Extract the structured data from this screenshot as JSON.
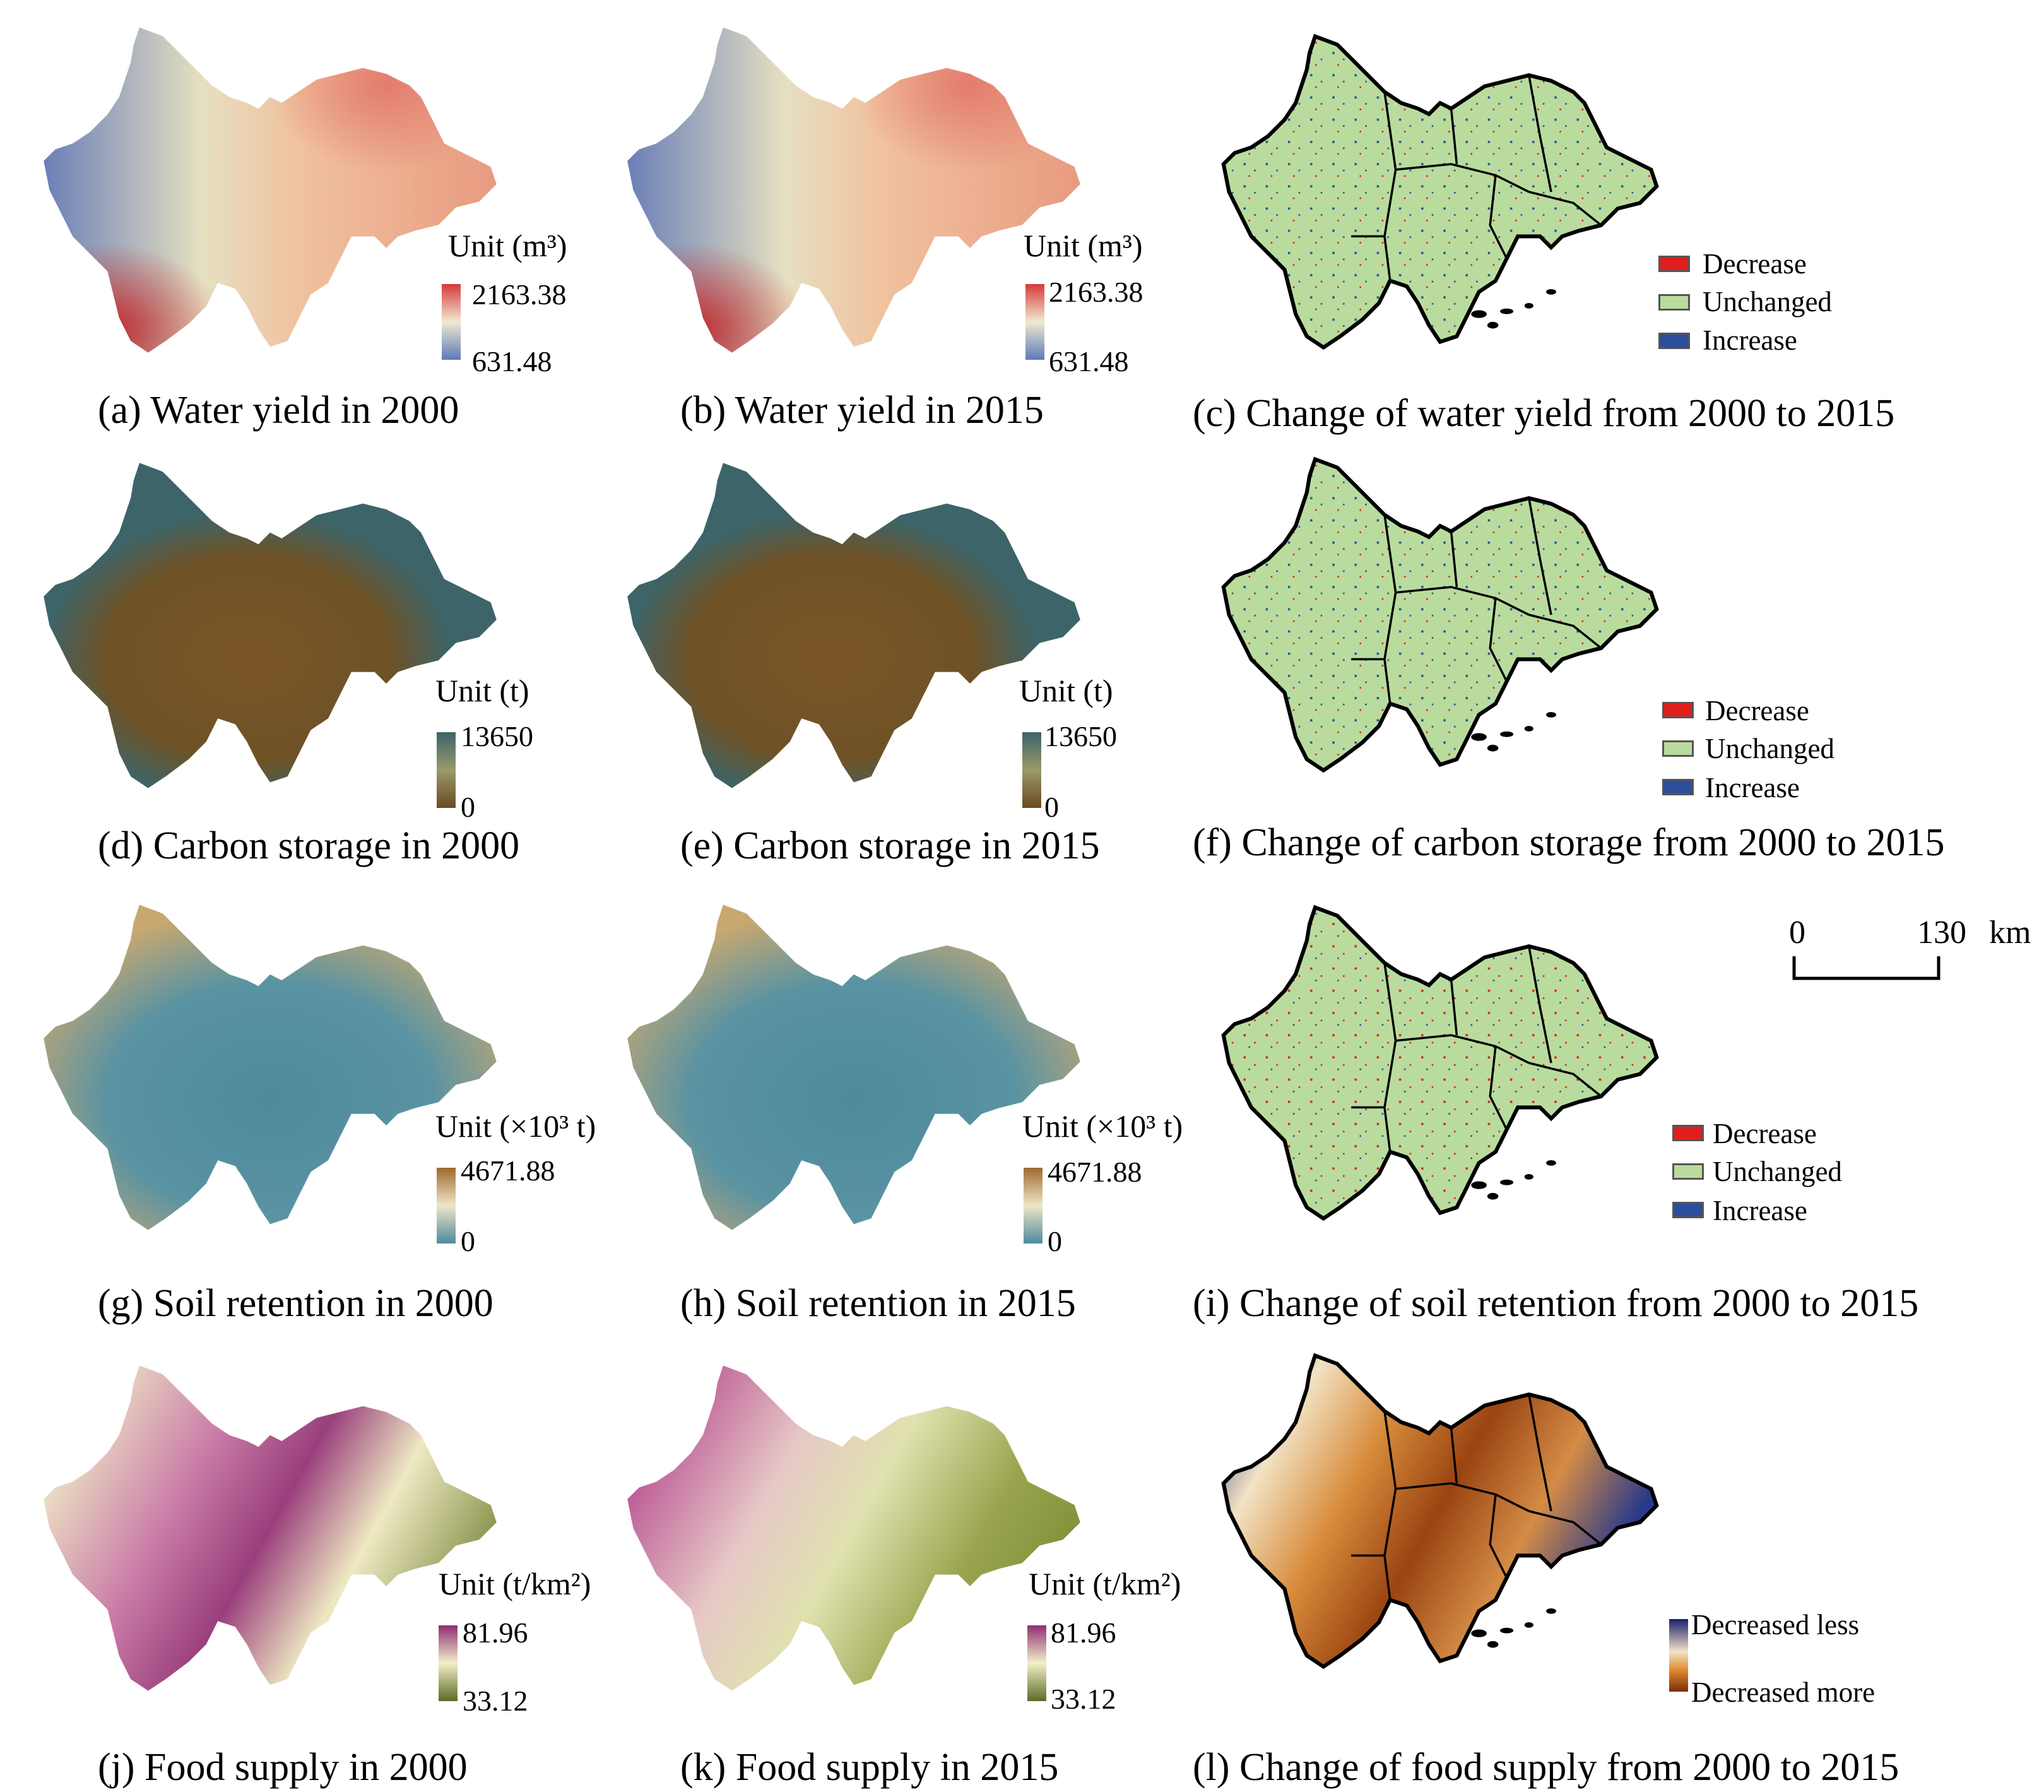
{
  "panels": {
    "a": {
      "caption": "(a) Water yield in 2000",
      "unit": "Unit (m³)",
      "max": "2163.38",
      "min": "631.48"
    },
    "b": {
      "caption": "(b) Water yield in 2015",
      "unit": "Unit (m³)",
      "max": "2163.38",
      "min": "631.48"
    },
    "c": {
      "caption": "(c) Change of water yield from 2000 to 2015",
      "legend": [
        "Decrease",
        "Unchanged",
        "Increase"
      ]
    },
    "d": {
      "caption": "(d) Carbon storage in 2000",
      "unit": "Unit (t)",
      "max": "13650",
      "min": "0"
    },
    "e": {
      "caption": "(e) Carbon storage in 2015",
      "unit": "Unit (t)",
      "max": "13650",
      "min": "0"
    },
    "f": {
      "caption": "(f) Change of carbon storage from 2000 to 2015",
      "legend": [
        "Decrease",
        "Unchanged",
        "Increase"
      ]
    },
    "g": {
      "caption": "(g) Soil retention in 2000",
      "unit": "Unit (×10³ t)",
      "max": "4671.88",
      "min": "0"
    },
    "h": {
      "caption": "(h) Soil retention in 2015",
      "unit": "Unit (×10³ t)",
      "max": "4671.88",
      "min": "0"
    },
    "i": {
      "caption": "(i) Change of soil retention from 2000 to 2015",
      "legend": [
        "Decrease",
        "Unchanged",
        "Increase"
      ]
    },
    "j": {
      "caption": "(j) Food supply in 2000",
      "unit": "Unit (t/km²)",
      "max": "81.96",
      "min": "33.12"
    },
    "k": {
      "caption": "(k) Food supply in 2015",
      "unit": "Unit (t/km²)",
      "max": "81.96",
      "min": "33.12"
    },
    "l": {
      "caption": "(l) Change of food supply from 2000 to 2015",
      "legend_top": "Decreased less",
      "legend_bottom": "Decreased more"
    }
  },
  "scale_bar": {
    "start": "0",
    "end": "130",
    "unit": "km"
  },
  "colors": {
    "water_high": "#d7383a",
    "water_mid": "#f0ead0",
    "water_low": "#5c79b8",
    "carbon_high": "#3c6367",
    "carbon_low": "#6b4a22",
    "soil_high": "#9c6a2e",
    "soil_low": "#4f8a9c",
    "food_high": "#8e2f73",
    "food_mid": "#f3efc8",
    "food_low": "#5b6b25",
    "change_decrease": "#e01e1e",
    "change_unchanged": "#b9dc9e",
    "change_increase": "#2c4e9c",
    "food_change_less": "#1a1f6b",
    "food_change_more": "#7a2e06"
  }
}
